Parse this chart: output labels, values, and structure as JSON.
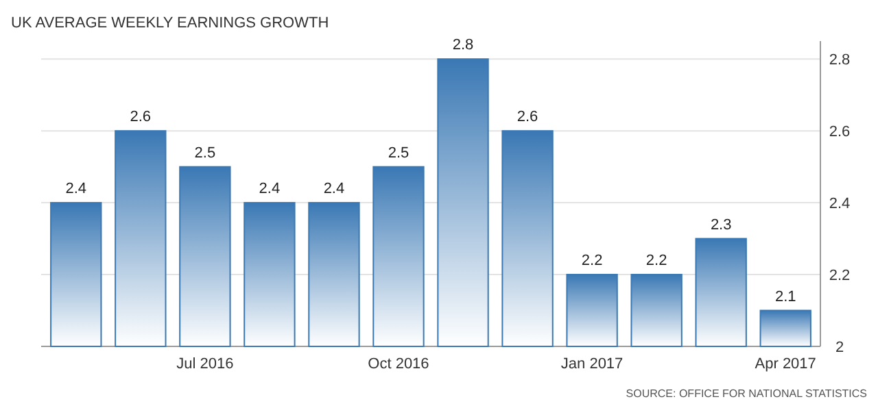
{
  "chart_data": {
    "type": "bar",
    "title": "UK AVERAGE WEEKLY EARNINGS GROWTH",
    "categories": [
      null,
      null,
      "Jul 2016",
      null,
      null,
      "Oct 2016",
      null,
      null,
      "Jan 2017",
      null,
      null,
      "Apr 2017"
    ],
    "values": [
      2.4,
      2.6,
      2.5,
      2.4,
      2.4,
      2.5,
      2.8,
      2.6,
      2.2,
      2.2,
      2.3,
      2.1
    ],
    "color": "#3a78b4",
    "ylim": [
      2,
      2.85
    ],
    "yticks": [
      2,
      2.2,
      2.4,
      2.6,
      2.8
    ],
    "grid": "y",
    "data_labels": true,
    "annotations": [
      "SOURCE: OFFICE FOR NATIONAL STATISTICS"
    ]
  }
}
